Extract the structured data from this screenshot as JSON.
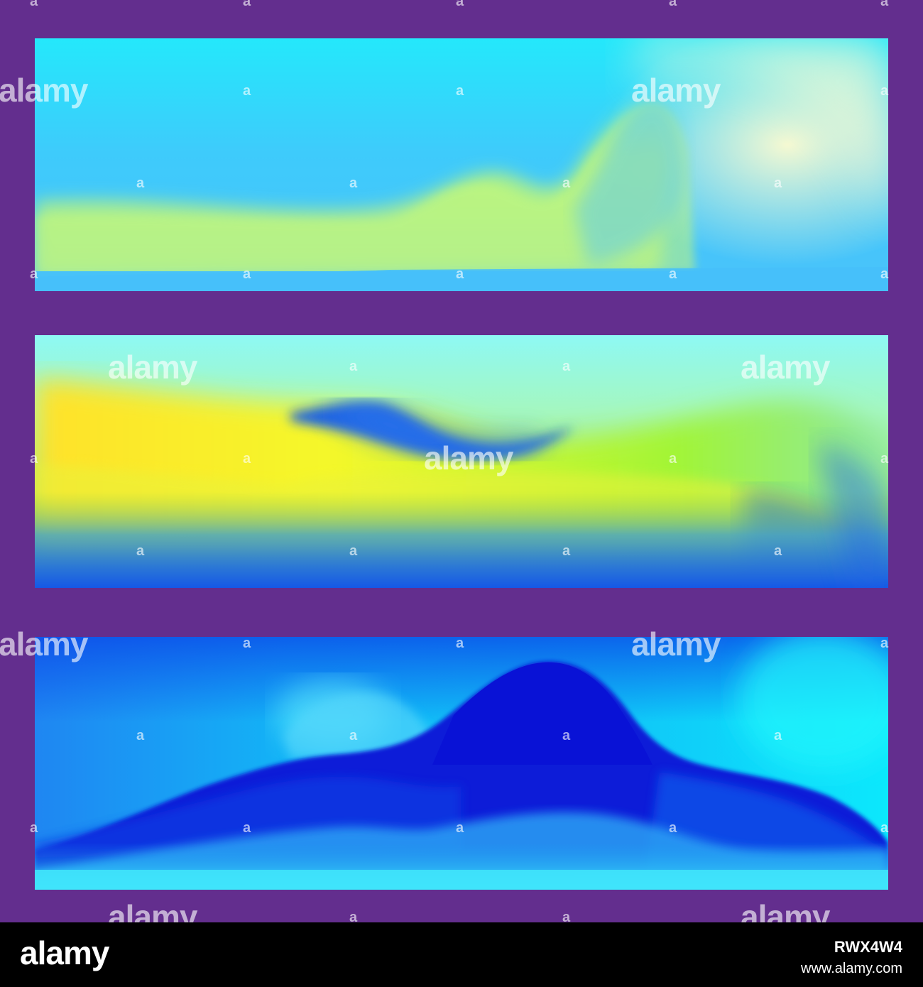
{
  "image": {
    "background_color": "#632e8e",
    "panels": [
      {
        "name": "panel-1",
        "palette": [
          "#2fd6fb",
          "#47c0fb",
          "#c6fb78",
          "#fff9c8"
        ]
      },
      {
        "name": "panel-2",
        "palette": [
          "#8ffaf0",
          "#ffff2a",
          "#9cf54a",
          "#1a63e0"
        ]
      },
      {
        "name": "panel-3",
        "palette": [
          "#00fbfc",
          "#0a3be8",
          "#0a10d8",
          "#34d8fb"
        ]
      }
    ]
  },
  "watermark": {
    "logo": "alamy",
    "mark": "a"
  },
  "footer": {
    "logo": "alamy",
    "image_id": "RWX4W4",
    "url": "www.alamy.com",
    "background_color": "#000000"
  }
}
